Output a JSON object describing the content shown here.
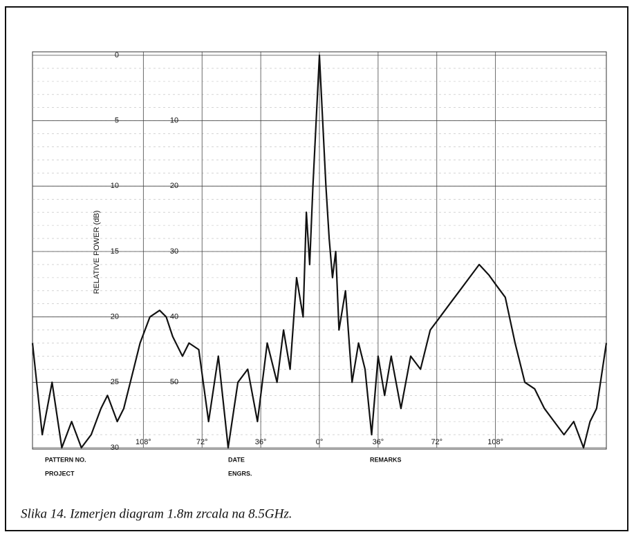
{
  "chart_data": {
    "type": "line",
    "y_label": "RELATIVE POWER (dB)",
    "caption": "Slika 14. Izmerjen diagram 1.8m zrcala na 8.5GHz.",
    "annotations": [
      "PATTERN NO.",
      "PROJECT",
      "DATE",
      "ENGRS.",
      "REMARKS"
    ],
    "color": "#111111",
    "grid": true,
    "y_inverted": true,
    "xlim": [
      -176,
      176
    ],
    "xticks": [
      {
        "value": -108,
        "label": "108°"
      },
      {
        "value": -72,
        "label": "72°"
      },
      {
        "value": -36,
        "label": "36°"
      },
      {
        "value": 0,
        "label": "0°"
      },
      {
        "value": 36,
        "label": "36°"
      },
      {
        "value": 72,
        "label": "72°"
      },
      {
        "value": 108,
        "label": "108°"
      }
    ],
    "ylim": [
      0,
      30
    ],
    "yticks": [
      0,
      5,
      10,
      15,
      20,
      25,
      30
    ],
    "y2lim": [
      0,
      60
    ],
    "y2ticks": [
      10,
      20,
      30,
      40,
      50
    ],
    "x": [
      -176,
      -170,
      -164,
      -158,
      -152,
      -146,
      -140,
      -134,
      -130,
      -124,
      -120,
      -114,
      -110,
      -104,
      -98,
      -94,
      -90,
      -84,
      -80,
      -74,
      -68,
      -62,
      -56,
      -50,
      -44,
      -38,
      -32,
      -26,
      -22,
      -18,
      -14,
      -10,
      -8,
      -6,
      -4,
      -2,
      0,
      2,
      4,
      6,
      8,
      10,
      12,
      16,
      20,
      24,
      28,
      32,
      36,
      40,
      44,
      50,
      56,
      62,
      68,
      74,
      80,
      86,
      92,
      98,
      104,
      108,
      114,
      120,
      126,
      132,
      138,
      144,
      150,
      156,
      162,
      166,
      170,
      176
    ],
    "values": [
      22,
      29,
      25,
      30,
      28,
      30,
      29,
      27,
      26,
      28,
      27,
      24,
      22,
      20,
      19.5,
      20,
      21.5,
      23,
      22,
      22.5,
      28,
      23,
      30,
      25,
      24,
      28,
      22,
      25,
      21,
      24,
      17,
      20,
      12,
      16,
      10,
      5,
      0,
      5,
      10,
      14,
      17,
      15,
      21,
      18,
      25,
      22,
      24,
      29,
      23,
      26,
      23,
      27,
      23,
      24,
      21,
      20,
      19,
      18,
      17,
      16,
      16.8,
      17.5,
      18.5,
      22,
      25,
      25.5,
      27,
      28,
      29,
      28,
      30,
      28,
      27,
      22
    ]
  }
}
